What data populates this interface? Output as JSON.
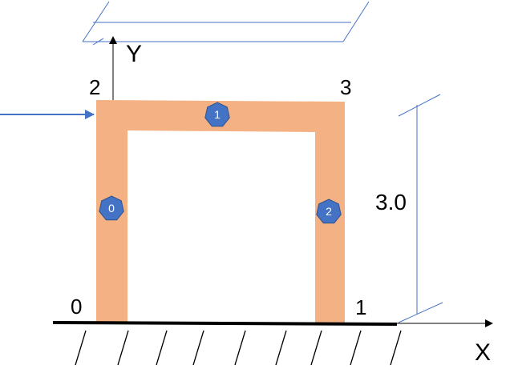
{
  "diagram": {
    "type": "portal-frame",
    "axes": {
      "x_label": "X",
      "y_label": "Y"
    },
    "nodes": [
      {
        "id": "0",
        "label": "0"
      },
      {
        "id": "1",
        "label": "1"
      },
      {
        "id": "2",
        "label": "2"
      },
      {
        "id": "3",
        "label": "3"
      }
    ],
    "elements": [
      {
        "id": "0",
        "label": "0",
        "from": "0",
        "to": "2"
      },
      {
        "id": "1",
        "label": "1",
        "from": "2",
        "to": "3"
      },
      {
        "id": "2",
        "label": "2",
        "from": "1",
        "to": "3"
      }
    ],
    "dimension": {
      "label": "3.0"
    },
    "load": {
      "node": "2",
      "direction": "+X"
    },
    "colors": {
      "member": "#F4B183",
      "element_badge": "#4472C4",
      "arrow": "#4472C4",
      "dim_line": "#4472C4",
      "ground": "#000000"
    }
  }
}
